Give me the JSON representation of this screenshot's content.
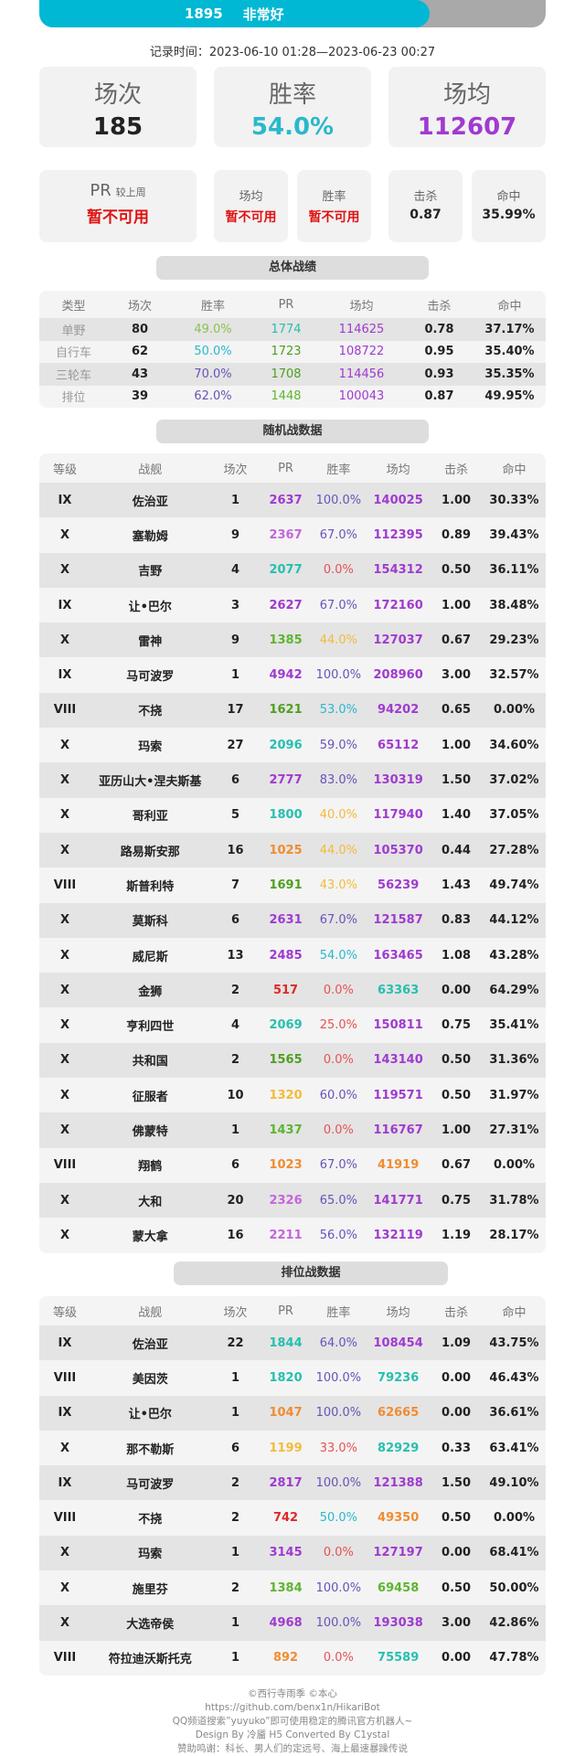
{
  "header": {
    "pr": "1895",
    "rating": "非常好",
    "progress": 0.77,
    "record_time": "记录时间：2023-06-10 01:28—2023-06-23 00:27"
  },
  "palette": {
    "purple": "#a03ad0",
    "lpurple": "#c465dc",
    "teal": "#26bfb0",
    "cyan": "#2ab8cc",
    "green": "#4f9e22",
    "lgreen": "#5db52f",
    "yellow": "#f2bb3a",
    "orange": "#f08c30",
    "red": "#e02828",
    "lred": "#e65252",
    "indigo": "#6a52b8",
    "lime": "#8cc050",
    "black": "#222"
  },
  "cards": {
    "battles": {
      "label": "场次",
      "value": "185"
    },
    "winrate": {
      "label": "胜率",
      "value": "54.0%",
      "color": "#2ab8cc"
    },
    "avg_damage": {
      "label": "场均",
      "value": "112607",
      "color": "#a03ad0"
    },
    "pr": {
      "label": "PR",
      "sub": "较上周",
      "value": "暂不可用"
    },
    "avg_change": {
      "label": "场均",
      "value": "暂不可用"
    },
    "wr_change": {
      "label": "胜率",
      "value": "暂不可用"
    },
    "kills": {
      "label": "击杀",
      "value": "0.87"
    },
    "hit": {
      "label": "命中",
      "value": "35.99%"
    }
  },
  "overall": {
    "title": "总体战绩",
    "columns": [
      "类型",
      "场次",
      "胜率",
      "PR",
      "场均",
      "击杀",
      "命中"
    ],
    "rows": [
      {
        "type": "单野",
        "battles": "80",
        "wr": "49.0%",
        "pr": "1774",
        "dmg": "114625",
        "kills": "0.78",
        "hit": "37.17%",
        "c": [
          "lime",
          "teal",
          "purple"
        ]
      },
      {
        "type": "自行车",
        "battles": "62",
        "wr": "50.0%",
        "pr": "1723",
        "dmg": "108722",
        "kills": "0.95",
        "hit": "35.40%",
        "c": [
          "cyan",
          "green",
          "purple"
        ]
      },
      {
        "type": "三轮车",
        "battles": "43",
        "wr": "70.0%",
        "pr": "1708",
        "dmg": "114456",
        "kills": "0.93",
        "hit": "35.35%",
        "c": [
          "indigo",
          "green",
          "purple"
        ]
      },
      {
        "type": "排位",
        "battles": "39",
        "wr": "62.0%",
        "pr": "1448",
        "dmg": "100043",
        "kills": "0.87",
        "hit": "49.95%",
        "c": [
          "indigo",
          "lgreen",
          "purple"
        ]
      }
    ]
  },
  "ship_columns": [
    "等级",
    "战舰",
    "场次",
    "PR",
    "胜率",
    "场均",
    "击杀",
    "命中"
  ],
  "random": {
    "title": "随机战数据",
    "rows": [
      [
        "IX",
        "佐治亚",
        "1",
        "2637",
        "100.0%",
        "140025",
        "1.00",
        "30.33%",
        "purple",
        "indigo",
        "purple"
      ],
      [
        "X",
        "塞勒姆",
        "9",
        "2367",
        "67.0%",
        "112395",
        "0.89",
        "39.43%",
        "lpurple",
        "indigo",
        "purple"
      ],
      [
        "X",
        "吉野",
        "4",
        "2077",
        "0.0%",
        "154312",
        "0.50",
        "36.11%",
        "teal",
        "lred",
        "purple"
      ],
      [
        "IX",
        "让•巴尔",
        "3",
        "2627",
        "67.0%",
        "172160",
        "1.00",
        "38.48%",
        "purple",
        "indigo",
        "purple"
      ],
      [
        "X",
        "雷神",
        "9",
        "1385",
        "44.0%",
        "127037",
        "0.67",
        "29.23%",
        "lgreen",
        "yellow",
        "purple"
      ],
      [
        "IX",
        "马可波罗",
        "1",
        "4942",
        "100.0%",
        "208960",
        "3.00",
        "32.57%",
        "purple",
        "indigo",
        "purple"
      ],
      [
        "VIII",
        "不挠",
        "17",
        "1621",
        "53.0%",
        "94202",
        "0.65",
        "0.00%",
        "green",
        "cyan",
        "purple"
      ],
      [
        "X",
        "玛索",
        "27",
        "2096",
        "59.0%",
        "65112",
        "1.00",
        "34.60%",
        "teal",
        "indigo",
        "purple"
      ],
      [
        "X",
        "亚历山大•涅夫斯基",
        "6",
        "2777",
        "83.0%",
        "130319",
        "1.50",
        "37.02%",
        "purple",
        "indigo",
        "purple"
      ],
      [
        "X",
        "哥利亚",
        "5",
        "1800",
        "40.0%",
        "117940",
        "1.40",
        "37.05%",
        "teal",
        "yellow",
        "purple"
      ],
      [
        "X",
        "路易斯安那",
        "16",
        "1025",
        "44.0%",
        "105370",
        "0.44",
        "27.28%",
        "orange",
        "yellow",
        "purple"
      ],
      [
        "VIII",
        "斯普利特",
        "7",
        "1691",
        "43.0%",
        "56239",
        "1.43",
        "49.74%",
        "green",
        "yellow",
        "purple"
      ],
      [
        "X",
        "莫斯科",
        "6",
        "2631",
        "67.0%",
        "121587",
        "0.83",
        "44.12%",
        "purple",
        "indigo",
        "purple"
      ],
      [
        "X",
        "威尼斯",
        "13",
        "2485",
        "54.0%",
        "163465",
        "1.08",
        "43.28%",
        "purple",
        "cyan",
        "purple"
      ],
      [
        "X",
        "金狮",
        "2",
        "517",
        "0.0%",
        "63363",
        "0.00",
        "64.29%",
        "red",
        "lred",
        "teal"
      ],
      [
        "X",
        "亨利四世",
        "4",
        "2069",
        "25.0%",
        "150811",
        "0.75",
        "35.41%",
        "teal",
        "lred",
        "purple"
      ],
      [
        "X",
        "共和国",
        "2",
        "1565",
        "0.0%",
        "143140",
        "0.50",
        "31.36%",
        "green",
        "lred",
        "purple"
      ],
      [
        "X",
        "征服者",
        "10",
        "1320",
        "60.0%",
        "119571",
        "0.50",
        "31.97%",
        "yellow",
        "indigo",
        "purple"
      ],
      [
        "X",
        "佛蒙特",
        "1",
        "1437",
        "0.0%",
        "116767",
        "1.00",
        "27.31%",
        "lgreen",
        "lred",
        "purple"
      ],
      [
        "VIII",
        "翔鹤",
        "6",
        "1023",
        "67.0%",
        "41919",
        "0.67",
        "0.00%",
        "orange",
        "indigo",
        "orange"
      ],
      [
        "X",
        "大和",
        "20",
        "2326",
        "65.0%",
        "141771",
        "0.75",
        "31.78%",
        "lpurple",
        "indigo",
        "purple"
      ],
      [
        "X",
        "蒙大拿",
        "16",
        "2211",
        "56.0%",
        "132119",
        "1.19",
        "28.17%",
        "lpurple",
        "indigo",
        "purple"
      ]
    ]
  },
  "ranked": {
    "title": "排位战数据",
    "rows": [
      [
        "IX",
        "佐治亚",
        "22",
        "1844",
        "64.0%",
        "108454",
        "1.09",
        "43.75%",
        "teal",
        "indigo",
        "purple"
      ],
      [
        "VIII",
        "美因茨",
        "1",
        "1820",
        "100.0%",
        "79236",
        "0.00",
        "46.43%",
        "teal",
        "indigo",
        "teal"
      ],
      [
        "IX",
        "让•巴尔",
        "1",
        "1047",
        "100.0%",
        "62665",
        "0.00",
        "36.61%",
        "orange",
        "indigo",
        "orange"
      ],
      [
        "X",
        "那不勒斯",
        "6",
        "1199",
        "33.0%",
        "82929",
        "0.33",
        "63.41%",
        "yellow",
        "lred",
        "teal"
      ],
      [
        "IX",
        "马可波罗",
        "2",
        "2817",
        "100.0%",
        "121388",
        "1.50",
        "49.10%",
        "purple",
        "indigo",
        "purple"
      ],
      [
        "VIII",
        "不挠",
        "2",
        "742",
        "50.0%",
        "49350",
        "0.50",
        "0.00%",
        "red",
        "cyan",
        "orange"
      ],
      [
        "X",
        "玛索",
        "1",
        "3145",
        "0.0%",
        "127197",
        "0.00",
        "68.41%",
        "purple",
        "lred",
        "purple"
      ],
      [
        "X",
        "施里芬",
        "2",
        "1384",
        "100.0%",
        "69458",
        "0.50",
        "50.00%",
        "lgreen",
        "indigo",
        "lgreen"
      ],
      [
        "X",
        "大选帝侯",
        "1",
        "4968",
        "100.0%",
        "193038",
        "3.00",
        "42.86%",
        "purple",
        "indigo",
        "purple"
      ],
      [
        "VIII",
        "符拉迪沃斯托克",
        "1",
        "892",
        "0.0%",
        "75589",
        "0.00",
        "47.78%",
        "orange",
        "lred",
        "teal"
      ]
    ]
  },
  "footer": [
    "©西行寺雨季  ©本心",
    "https://github.com/benx1n/HikariBot",
    "QQ频道搜索”yuyuko”即可使用稳定的腾讯官方机器人~",
    "Design By 冷靥 H5 Converted By C1ystal",
    "赞助鸣谢：科长、男人们的定远号、海上最速暴躁传说"
  ]
}
